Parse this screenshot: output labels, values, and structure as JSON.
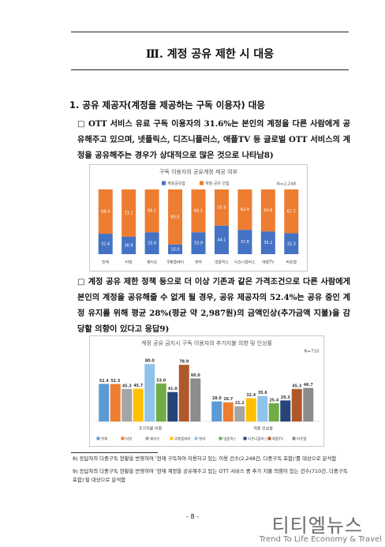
{
  "header": {
    "title": "Ⅲ. 계정 공유 제한 시 대응"
  },
  "section": {
    "heading": "1. 공유 제공자(계정을 제공하는 구독 이용자) 대응"
  },
  "paragraphs": [
    "□ OTT 서비스 유료 구독 이용자의 31.6%는 본인의 계정을 다른 사람에게 공유해주고 있으며, 넷플릭스, 디즈니플러스, 애플TV 등 글로벌 OTT 서비스의 계정을 공유해주는 경우가 상대적으로 많은 것으로 나타남8)",
    "□ 계정 공유 제한 정책 등으로 더 이상 기존과 같은 가격조건으로 다른 사람에게 본인의 계정을 공유해줄 수 없게 될 경우, 공유 제공자의 52.4%는 공유 중인 계정 유지를 위해 평균 28%(평균 약 2,987원)의 금액인상(추가금액 지불)을 감당할 의향이 있다고 응답9)"
  ],
  "chart_data": [
    {
      "type": "bar",
      "stacked": true,
      "title": "구독 이용자의 공유계정 제공 여부",
      "note": "N=2,248",
      "categories": [
        "전체",
        "티빙",
        "웨이브",
        "쿠팡플레이",
        "왓챠",
        "넷플릭스",
        "디즈니플러스",
        "애플TV",
        "라프텔"
      ],
      "series": [
        {
          "name": "계정공유함",
          "color": "#4472c4",
          "values": [
            31.6,
            26.9,
            33.9,
            15.0,
            33.9,
            44.1,
            37.6,
            35.2,
            32.3
          ],
          "value_labels": [
            "31.6",
            "26.9",
            "33.9",
            "15.0",
            "33.9",
            "44.1",
            "37.6",
            "35.2",
            "32.3"
          ]
        },
        {
          "name": "계정 공유 안함",
          "color": "#ed7d31",
          "values": [
            68.4,
            73.1,
            66.1,
            85.0,
            66.1,
            55.9,
            62.4,
            64.8,
            67.7
          ],
          "value_labels": [
            "68.4",
            "73.1",
            "66.1",
            "85.0",
            "66.1",
            "55.9",
            "62.4",
            "64.8",
            "67.7"
          ]
        }
      ],
      "ylim": [
        0,
        100
      ]
    },
    {
      "type": "bar",
      "stacked": false,
      "title": "계정 공유 금지시 구독 이용자의 추가지불 의향 및 인상률",
      "note": "N=710",
      "categories": [
        "추가지불 의향",
        "적용 인상률"
      ],
      "series": [
        {
          "name": "전체",
          "color": "#5b9bd5",
          "values": [
            52.4,
            28.0
          ],
          "value_labels": [
            "52.4",
            "28.0"
          ]
        },
        {
          "name": "티빙",
          "color": "#ed7d31",
          "values": [
            52.3,
            26.7
          ],
          "value_labels": [
            "52.3",
            "26.7"
          ]
        },
        {
          "name": "웨이브",
          "color": "#a5a5a5",
          "values": [
            45.3,
            21.2
          ],
          "value_labels": [
            "45.3",
            "21.2"
          ]
        },
        {
          "name": "쿠팡플레이",
          "color": "#ffc000",
          "values": [
            45.7,
            32.4
          ],
          "value_labels": [
            "45.7",
            "32.4"
          ]
        },
        {
          "name": "왓챠",
          "color": "#8fc3ea",
          "values": [
            80.0,
            35.6
          ],
          "value_labels": [
            "80.0",
            "35.6"
          ]
        },
        {
          "name": "넷플릭스",
          "color": "#70ad47",
          "values": [
            53.0,
            25.4
          ],
          "value_labels": [
            "53.0",
            "25.4"
          ]
        },
        {
          "name": "디즈니플러스",
          "color": "#264478",
          "values": [
            41.0,
            29.3
          ],
          "value_labels": [
            "41.0",
            "29.3"
          ]
        },
        {
          "name": "애플TV",
          "color": "#b0582a",
          "values": [
            78.9,
            45.3
          ],
          "value_labels": [
            "78.9",
            "45.3"
          ]
        },
        {
          "name": "라프텔",
          "color": "#8c8c8c",
          "values": [
            60.0,
            46.7
          ],
          "value_labels": [
            "60.0",
            "46.7"
          ]
        }
      ],
      "ylim": [
        0,
        100
      ]
    }
  ],
  "footnotes": [
    "8) 응답자의 다중구독 현황을 반영하여 '현재 구독하여 이용하고 있는 이용 건수(2,248건, 다중구독 포함)'를 대상으로 분석함",
    "9) 응답자의 다중구독 현황을 반영하여 '현재 계정을 공유해주고 있는 OTT 서비스 중 추가 지불 의향이 있는 건수(710건, 다중구독 포함)'을 대상으로 분석함"
  ],
  "page_number": "- 8 -",
  "watermark": {
    "name": "티티엘뉴스",
    "slogan": "Trend To Life Economy & Travel"
  }
}
